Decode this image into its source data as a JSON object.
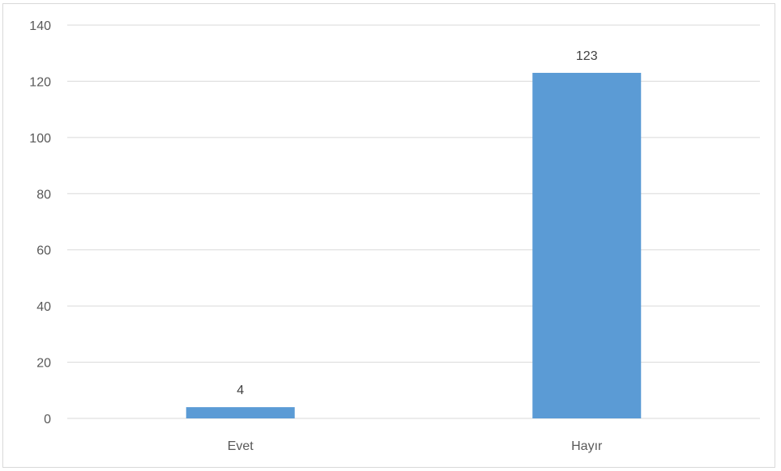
{
  "chart_data": {
    "type": "bar",
    "title": "",
    "xlabel": "",
    "ylabel": "",
    "categories": [
      "Evet",
      "Hayır"
    ],
    "values": [
      4,
      123
    ],
    "data_labels": [
      "4",
      "123"
    ],
    "ylim": [
      0,
      140
    ],
    "yticks": [
      0,
      20,
      40,
      60,
      80,
      100,
      120,
      140
    ],
    "grid": true,
    "legend": "none",
    "bar_color": "#5b9bd5",
    "grid_color": "#d9d9d9"
  }
}
